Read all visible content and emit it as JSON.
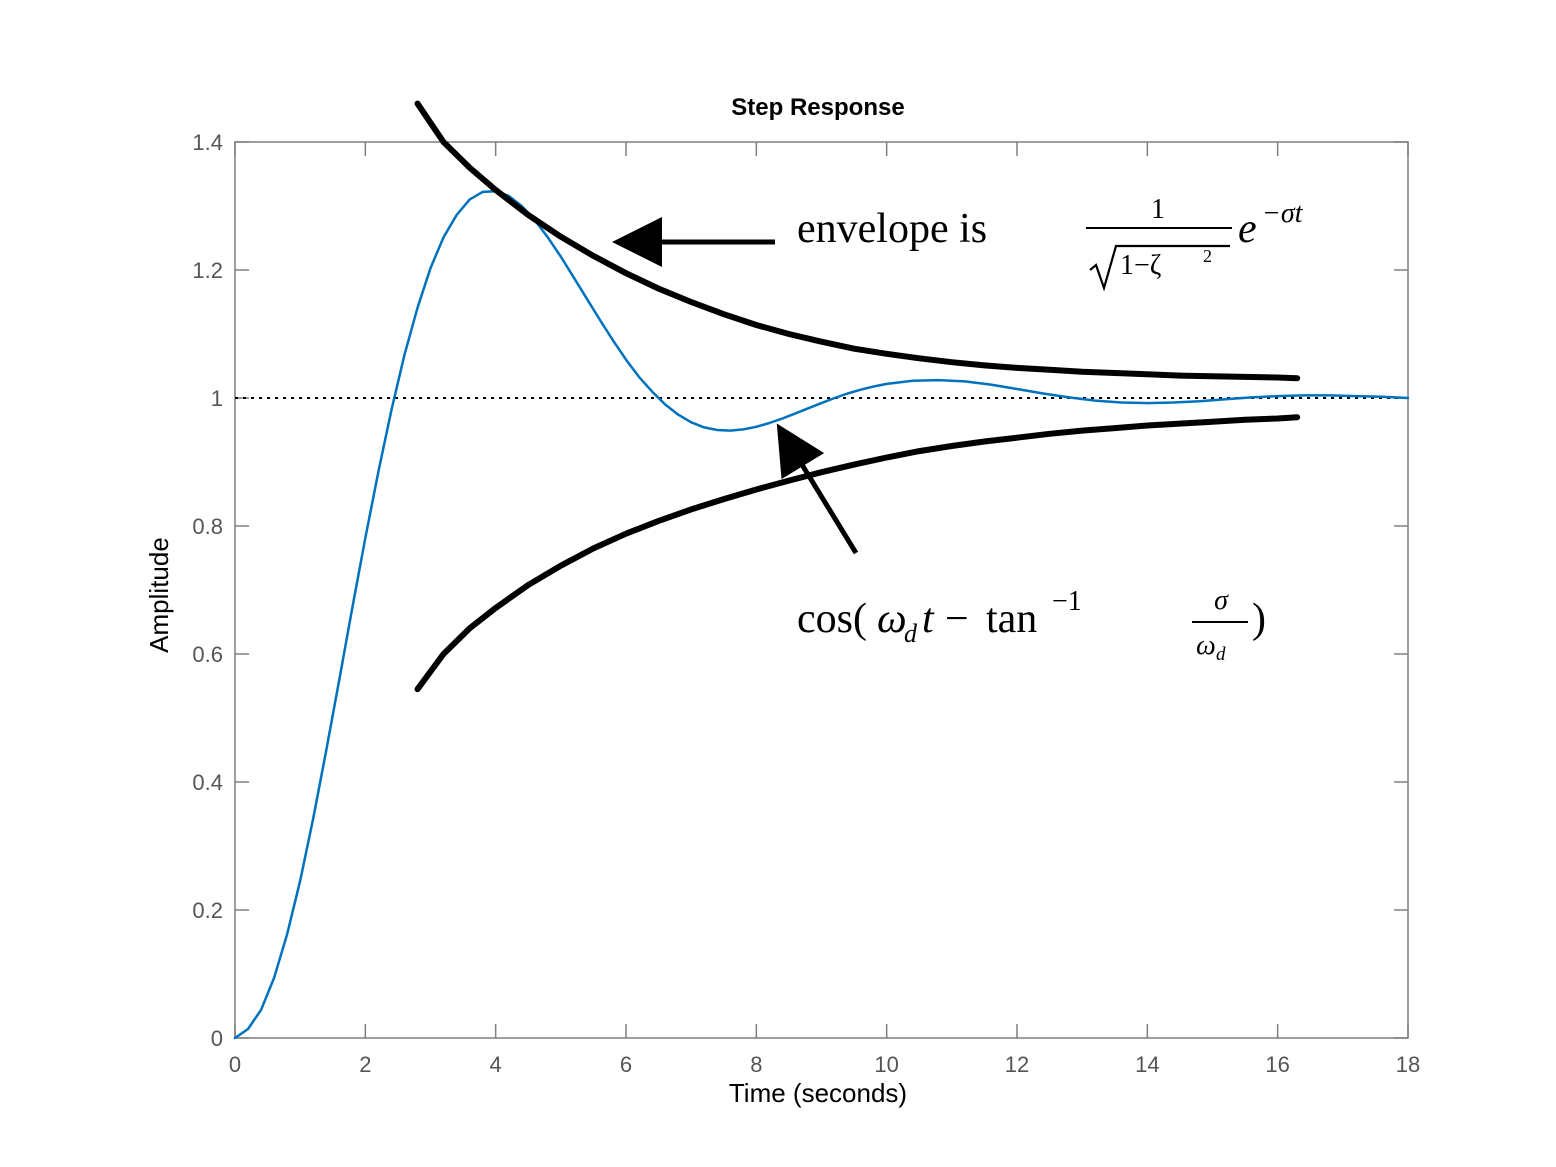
{
  "chart_data": {
    "type": "line",
    "title": "Step Response",
    "xlabel": "Time (seconds)",
    "ylabel": "Amplitude",
    "xlim": [
      0,
      18
    ],
    "ylim": [
      0,
      1.4
    ],
    "x_ticks": [
      "0",
      "2",
      "4",
      "6",
      "8",
      "10",
      "12",
      "14",
      "16",
      "18"
    ],
    "y_ticks": [
      "0",
      "0.2",
      "0.4",
      "0.6",
      "0.8",
      "1",
      "1.2",
      "1.4"
    ],
    "grid": false,
    "reference_line_y": 1,
    "series": [
      {
        "id": "step-response",
        "color": "#0072BD",
        "x": [
          0,
          0.2,
          0.4,
          0.6,
          0.8,
          1.0,
          1.2,
          1.4,
          1.6,
          1.8,
          2.0,
          2.2,
          2.4,
          2.6,
          2.8,
          3.0,
          3.2,
          3.4,
          3.6,
          3.8,
          4.0,
          4.2,
          4.4,
          4.6,
          4.8,
          5.0,
          5.2,
          5.4,
          5.6,
          5.8,
          6.0,
          6.2,
          6.4,
          6.6,
          6.8,
          7.0,
          7.2,
          7.4,
          7.6,
          7.8,
          8.0,
          8.2,
          8.4,
          8.6,
          8.8,
          9.0,
          9.2,
          9.4,
          9.6,
          9.8,
          10.0,
          10.4,
          10.8,
          11.2,
          11.6,
          12.0,
          12.4,
          12.8,
          13.2,
          13.6,
          14.0,
          14.4,
          14.8,
          15.2,
          15.6,
          16.0,
          16.4,
          16.8,
          17.2,
          17.6,
          18.0
        ],
        "y": [
          0,
          0.014,
          0.044,
          0.094,
          0.162,
          0.246,
          0.343,
          0.449,
          0.56,
          0.672,
          0.781,
          0.885,
          0.981,
          1.067,
          1.141,
          1.203,
          1.251,
          1.286,
          1.31,
          1.322,
          1.323,
          1.316,
          1.3,
          1.278,
          1.251,
          1.221,
          1.188,
          1.155,
          1.122,
          1.09,
          1.06,
          1.033,
          1.01,
          0.99,
          0.974,
          0.962,
          0.954,
          0.95,
          0.949,
          0.951,
          0.955,
          0.961,
          0.968,
          0.976,
          0.984,
          0.992,
          1.0,
          1.007,
          1.013,
          1.018,
          1.022,
          1.027,
          1.028,
          1.026,
          1.021,
          1.014,
          1.007,
          1.001,
          0.996,
          0.993,
          0.992,
          0.993,
          0.995,
          0.998,
          1.001,
          1.003,
          1.004,
          1.004,
          1.003,
          1.002,
          1.0
        ]
      },
      {
        "id": "upper-envelope",
        "color": "#000000",
        "x": [
          2.8,
          3.2,
          3.6,
          4.0,
          4.5,
          5.0,
          5.5,
          6.0,
          6.5,
          7.0,
          7.5,
          8.0,
          8.5,
          9.0,
          9.5,
          10.0,
          10.5,
          11.0,
          11.5,
          12.0,
          12.5,
          13.0,
          13.5,
          14.0,
          14.5,
          15.0,
          15.5,
          16.0,
          16.3
        ],
        "y": [
          1.46,
          1.4,
          1.36,
          1.325,
          1.286,
          1.252,
          1.222,
          1.195,
          1.171,
          1.15,
          1.131,
          1.114,
          1.1,
          1.088,
          1.077,
          1.069,
          1.062,
          1.056,
          1.051,
          1.047,
          1.044,
          1.041,
          1.039,
          1.037,
          1.035,
          1.034,
          1.033,
          1.032,
          1.031
        ]
      },
      {
        "id": "lower-envelope",
        "color": "#000000",
        "x": [
          2.8,
          3.2,
          3.6,
          4.0,
          4.5,
          5.0,
          5.5,
          6.0,
          6.5,
          7.0,
          7.5,
          8.0,
          8.5,
          9.0,
          9.5,
          10.0,
          10.5,
          11.0,
          11.5,
          12.0,
          12.5,
          13.0,
          13.5,
          14.0,
          14.5,
          15.0,
          15.5,
          16.0,
          16.3
        ],
        "y": [
          0.545,
          0.6,
          0.64,
          0.672,
          0.708,
          0.738,
          0.765,
          0.788,
          0.808,
          0.826,
          0.842,
          0.857,
          0.871,
          0.884,
          0.896,
          0.907,
          0.917,
          0.925,
          0.932,
          0.938,
          0.944,
          0.949,
          0.953,
          0.957,
          0.96,
          0.963,
          0.966,
          0.968,
          0.97
        ]
      }
    ]
  }
}
